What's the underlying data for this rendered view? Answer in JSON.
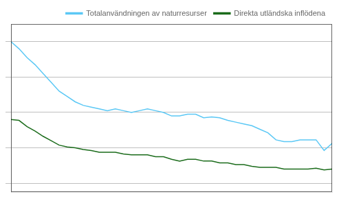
{
  "chart_data": {
    "type": "line",
    "title": "",
    "x": [
      1970,
      1971,
      1972,
      1973,
      1974,
      1975,
      1976,
      1977,
      1978,
      1979,
      1980,
      1981,
      1982,
      1983,
      1984,
      1985,
      1986,
      1987,
      1988,
      1989,
      1990,
      1991,
      1992,
      1993,
      1994,
      1995,
      1996,
      1997,
      1998,
      1999,
      2000,
      2001,
      2002,
      2003,
      2004,
      2005,
      2006,
      2007,
      2008,
      2009,
      2010
    ],
    "series": [
      {
        "name": "Totalanvändningen av naturresurser",
        "color": "#5bc8f5",
        "values": [
          1.0,
          0.96,
          0.91,
          0.87,
          0.82,
          0.77,
          0.72,
          0.69,
          0.66,
          0.64,
          0.63,
          0.62,
          0.61,
          0.62,
          0.61,
          0.6,
          0.61,
          0.62,
          0.61,
          0.6,
          0.58,
          0.58,
          0.59,
          0.59,
          0.57,
          0.575,
          0.57,
          0.555,
          0.545,
          0.535,
          0.525,
          0.505,
          0.485,
          0.445,
          0.435,
          0.435,
          0.445,
          0.445,
          0.445,
          0.385,
          0.425
        ]
      },
      {
        "name": "Direkta utländska inflödena",
        "color": "#1a6b1a",
        "values": [
          0.56,
          0.555,
          0.52,
          0.495,
          0.465,
          0.44,
          0.415,
          0.405,
          0.4,
          0.39,
          0.385,
          0.375,
          0.375,
          0.375,
          0.365,
          0.36,
          0.36,
          0.36,
          0.35,
          0.35,
          0.335,
          0.325,
          0.335,
          0.335,
          0.325,
          0.325,
          0.315,
          0.315,
          0.305,
          0.305,
          0.295,
          0.29,
          0.29,
          0.29,
          0.28,
          0.28,
          0.28,
          0.28,
          0.285,
          0.275,
          0.28
        ]
      }
    ],
    "xlim": [
      1970,
      2010
    ],
    "ylim": [
      0.15,
      1.1
    ],
    "yticks": [
      0.2,
      0.4,
      0.6,
      0.8,
      1.0
    ],
    "grid": true,
    "legend": "upper right",
    "tick_labels": false
  }
}
